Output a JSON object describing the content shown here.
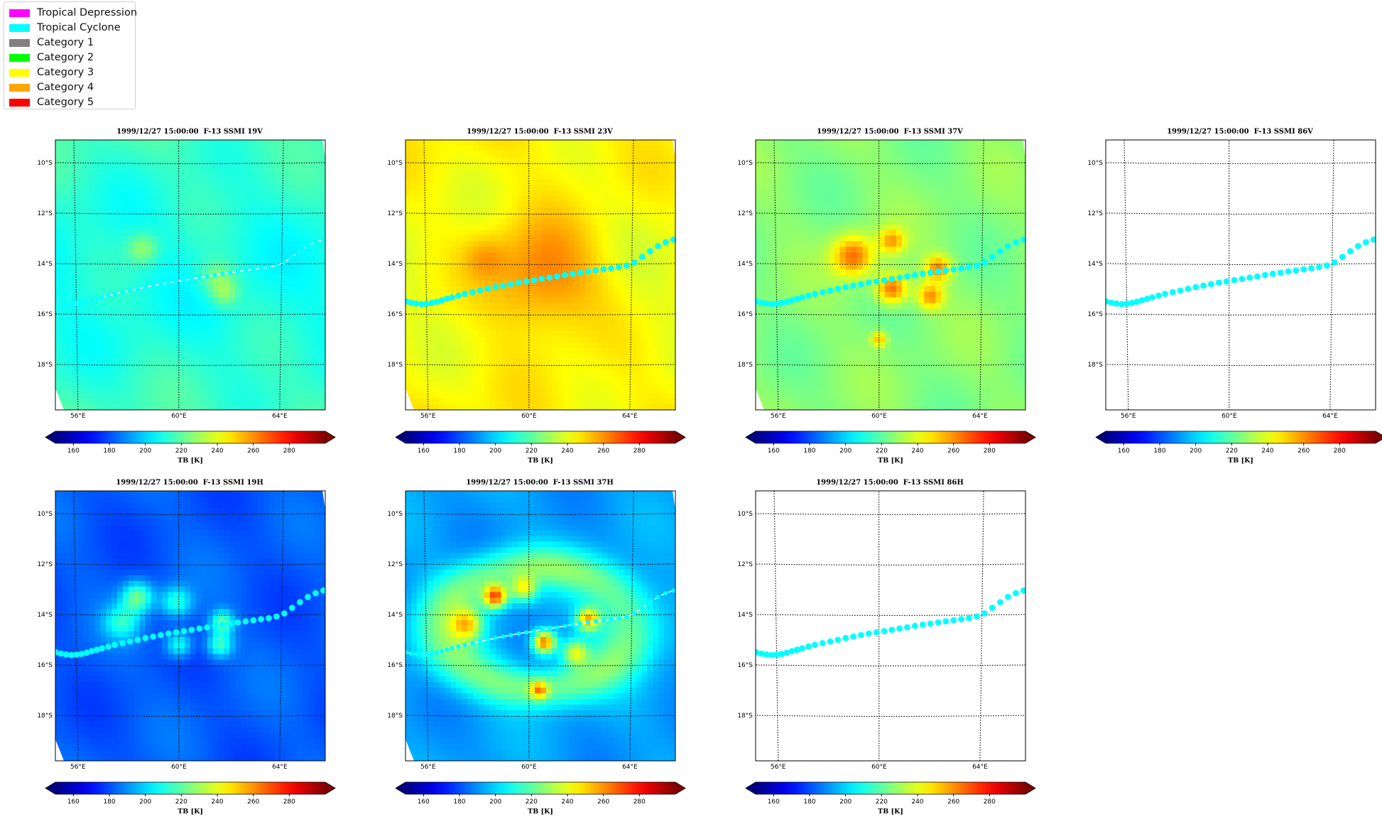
{
  "legend": {
    "items": [
      {
        "label": "Tropical Depression",
        "color": "#ff00ff"
      },
      {
        "label": "Tropical Cyclone",
        "color": "#00ffff"
      },
      {
        "label": "Category 1",
        "color": "#808080"
      },
      {
        "label": "Category 2",
        "color": "#00ff00"
      },
      {
        "label": "Category 3",
        "color": "#ffff00"
      },
      {
        "label": "Category 4",
        "color": "#ffa500"
      },
      {
        "label": "Category 5",
        "color": "#ff0000"
      }
    ]
  },
  "panels": [
    {
      "title": "1999/12/27 15:00:00  F-13 SSMI 19V",
      "base_tb": 215,
      "storm_tb": [
        {
          "lon": 58.6,
          "lat": -13.4,
          "amp": 18,
          "r": 0.6
        },
        {
          "lon": 61.5,
          "lat": -14.6,
          "amp": 16,
          "r": 0.7
        },
        {
          "lon": 61.8,
          "lat": -15.2,
          "amp": 14,
          "r": 0.5
        }
      ],
      "lat_gradient": -6,
      "ring": 0,
      "track_style": "dashed-line",
      "has_image": true
    },
    {
      "title": "1999/12/27 15:00:00  F-13 SSMI 23V",
      "base_tb": 245,
      "storm_tb": [
        {
          "lon": 60.5,
          "lat": -14.5,
          "amp": 22,
          "r": 2.2
        },
        {
          "lon": 58.3,
          "lat": -13.8,
          "amp": 10,
          "r": 0.8
        }
      ],
      "lat_gradient": -4,
      "ring": 0,
      "track_style": "dots",
      "has_image": true
    },
    {
      "title": "1999/12/27 15:00:00  F-13 SSMI 37V",
      "base_tb": 226,
      "storm_tb": [
        {
          "lon": 59.0,
          "lat": -13.7,
          "amp": 40,
          "r": 0.8
        },
        {
          "lon": 60.5,
          "lat": -13.1,
          "amp": 30,
          "r": 0.5
        },
        {
          "lon": 60.5,
          "lat": -15.0,
          "amp": 42,
          "r": 0.6
        },
        {
          "lon": 62.3,
          "lat": -14.2,
          "amp": 36,
          "r": 0.5
        },
        {
          "lon": 62.0,
          "lat": -15.3,
          "amp": 34,
          "r": 0.5
        },
        {
          "lon": 60.0,
          "lat": -17.0,
          "amp": 28,
          "r": 0.3
        }
      ],
      "lat_gradient": 0,
      "ring": 0,
      "track_style": "dots",
      "has_image": true
    },
    {
      "title": "1999/12/27 15:00:00  F-13 SSMI 86V",
      "track_style": "dots",
      "has_image": false
    },
    {
      "title": "1999/12/27 15:00:00  F-13 SSMI 19H",
      "base_tb": 182,
      "storm_tb": [
        {
          "lon": 58.4,
          "lat": -13.3,
          "amp": 40,
          "r": 0.6
        },
        {
          "lon": 59.9,
          "lat": -13.5,
          "amp": 30,
          "r": 0.6
        },
        {
          "lon": 61.7,
          "lat": -14.3,
          "amp": 38,
          "r": 0.45
        },
        {
          "lon": 61.6,
          "lat": -15.2,
          "amp": 34,
          "r": 0.5
        },
        {
          "lon": 57.8,
          "lat": -14.3,
          "amp": 28,
          "r": 0.7
        },
        {
          "lon": 60.0,
          "lat": -15.2,
          "amp": 30,
          "r": 0.5
        }
      ],
      "lat_gradient": 0,
      "ring": 0,
      "track_style": "dots",
      "has_image": true
    },
    {
      "title": "1999/12/27 15:00:00  F-13 SSMI 37H",
      "base_tb": 192,
      "storm_tb": [
        {
          "lon": 58.7,
          "lat": -13.3,
          "amp": 68,
          "r": 0.45
        },
        {
          "lon": 60.6,
          "lat": -15.1,
          "amp": 75,
          "r": 0.45
        },
        {
          "lon": 62.3,
          "lat": -14.2,
          "amp": 58,
          "r": 0.45
        },
        {
          "lon": 59.8,
          "lat": -13.0,
          "amp": 40,
          "r": 0.5
        },
        {
          "lon": 57.6,
          "lat": -14.4,
          "amp": 40,
          "r": 0.6
        },
        {
          "lon": 60.4,
          "lat": -17.0,
          "amp": 44,
          "r": 0.35
        },
        {
          "lon": 61.8,
          "lat": -15.5,
          "amp": 42,
          "r": 0.5
        }
      ],
      "lat_gradient": 0,
      "ring": 32,
      "track_style": "dashed-line",
      "has_image": true
    },
    {
      "title": "1999/12/27 15:00:00  F-13 SSMI 86H",
      "track_style": "dots",
      "has_image": false
    }
  ],
  "chart_data": {
    "type": "heatmap",
    "x_range": [
      55.2,
      65.7
    ],
    "y_range": [
      -19.8,
      -9.1
    ],
    "x_ticks": [
      56,
      60,
      64
    ],
    "x_tick_labels": [
      "56°E",
      "60°E",
      "64°E"
    ],
    "y_ticks": [
      -10,
      -12,
      -14,
      -16,
      -18
    ],
    "y_tick_labels": [
      "10°S",
      "12°S",
      "14°S",
      "16°S",
      "18°S"
    ],
    "colorbar": {
      "label": "TB [K]",
      "vmin": 150,
      "vmax": 300,
      "ticks": [
        160,
        180,
        200,
        220,
        240,
        260,
        280
      ],
      "extend": "both",
      "cmap": "jet"
    },
    "track_category": "Tropical Cyclone",
    "track_color": "#00ffff",
    "track": [
      [
        55.2,
        -15.5
      ],
      [
        55.4,
        -15.55
      ],
      [
        55.6,
        -15.58
      ],
      [
        55.8,
        -15.6
      ],
      [
        56.0,
        -15.58
      ],
      [
        56.2,
        -15.55
      ],
      [
        56.4,
        -15.5
      ],
      [
        56.6,
        -15.44
      ],
      [
        56.8,
        -15.38
      ],
      [
        57.0,
        -15.32
      ],
      [
        57.25,
        -15.25
      ],
      [
        57.5,
        -15.18
      ],
      [
        57.8,
        -15.11
      ],
      [
        58.1,
        -15.04
      ],
      [
        58.4,
        -14.97
      ],
      [
        58.7,
        -14.9
      ],
      [
        59.0,
        -14.84
      ],
      [
        59.3,
        -14.78
      ],
      [
        59.6,
        -14.72
      ],
      [
        59.9,
        -14.67
      ],
      [
        60.2,
        -14.62
      ],
      [
        60.5,
        -14.57
      ],
      [
        60.8,
        -14.52
      ],
      [
        61.1,
        -14.47
      ],
      [
        61.4,
        -14.42
      ],
      [
        61.7,
        -14.37
      ],
      [
        62.0,
        -14.33
      ],
      [
        62.3,
        -14.28
      ],
      [
        62.6,
        -14.24
      ],
      [
        62.9,
        -14.2
      ],
      [
        63.2,
        -14.16
      ],
      [
        63.5,
        -14.12
      ],
      [
        63.8,
        -14.06
      ],
      [
        64.1,
        -13.94
      ],
      [
        64.4,
        -13.72
      ],
      [
        64.7,
        -13.5
      ],
      [
        65.0,
        -13.3
      ],
      [
        65.3,
        -13.15
      ],
      [
        65.6,
        -13.05
      ]
    ]
  }
}
